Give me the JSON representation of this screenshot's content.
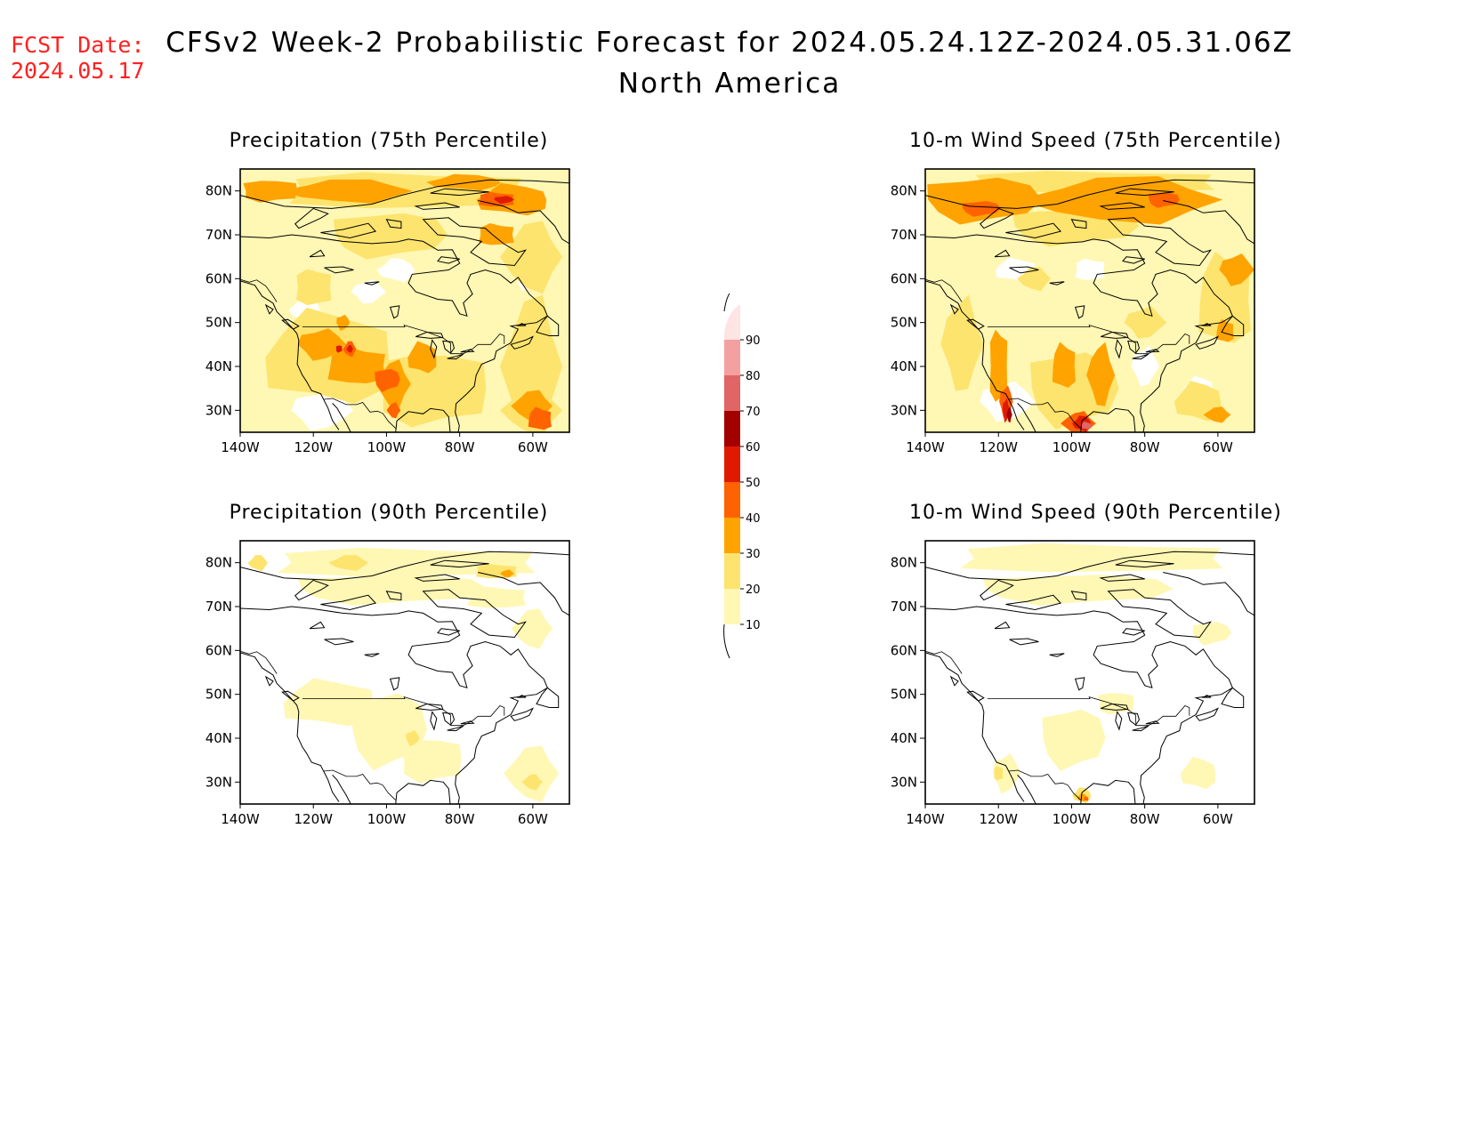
{
  "header": {
    "fcst_label": "FCST Date:",
    "fcst_date": "2024.05.17",
    "title": "CFSv2 Week-2 Probabilistic Forecast for 2024.05.24.12Z-2024.05.31.06Z",
    "subtitle": "North America"
  },
  "colors": {
    "c10": "#fff7b4",
    "c20": "#fde46e",
    "c30": "#ffa300",
    "c40": "#ff6200",
    "c50": "#e01a00",
    "c60": "#a30000",
    "c70": "#e06565",
    "c80": "#f5a0a0",
    "c90": "#ffe4e4"
  },
  "axes": {
    "lat_labels": [
      "80N",
      "70N",
      "60N",
      "50N",
      "40N",
      "30N"
    ],
    "lon_labels": [
      "140W",
      "120W",
      "100W",
      "80W",
      "60W"
    ]
  },
  "panels": [
    {
      "id": "precip75",
      "title": "Precipitation (75th Percentile)"
    },
    {
      "id": "wind75",
      "title": "10-m Wind Speed (75th Percentile)"
    },
    {
      "id": "precip90",
      "title": "Precipitation (90th Percentile)"
    },
    {
      "id": "wind90",
      "title": "10-m Wind Speed (90th Percentile)"
    }
  ],
  "colorbar": {
    "levels": [
      "10",
      "20",
      "30",
      "40",
      "50",
      "60",
      "70",
      "80",
      "90"
    ]
  }
}
